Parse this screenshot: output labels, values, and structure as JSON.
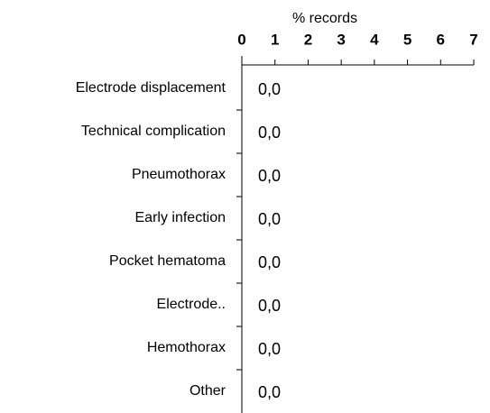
{
  "chart_data": {
    "type": "bar",
    "orientation": "horizontal",
    "xlabel": "% records",
    "categories": [
      "Electrode displacement",
      "Technical complication",
      "Pneumothorax",
      "Early infection",
      "Pocket hematoma",
      "Electrode..",
      "Hemothorax",
      "Other"
    ],
    "values": [
      0,
      0,
      0,
      0,
      0,
      0,
      0,
      0
    ],
    "value_labels": [
      "0,0",
      "0,0",
      "0,0",
      "0,0",
      "0,0",
      "0,0",
      "0,0",
      "0,0"
    ],
    "color": "#4472c4",
    "xlim": [
      0,
      7
    ],
    "xticks": [
      0,
      1,
      2,
      3,
      4,
      5,
      6,
      7
    ],
    "grid": false
  }
}
